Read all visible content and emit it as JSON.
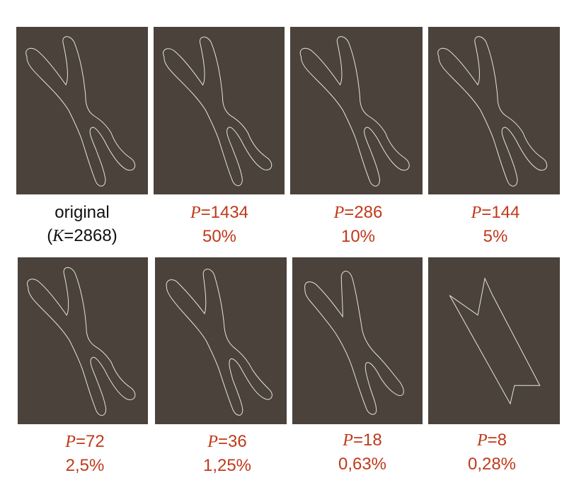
{
  "panels": [
    {
      "id": "original",
      "line1": "original",
      "line2_prefix": "(",
      "var": "K",
      "eq": "=2868",
      "line2_suffix": ")",
      "color": "black"
    },
    {
      "id": "p1434",
      "var": "P",
      "eq": "=1434",
      "line2": "50%",
      "color": "red"
    },
    {
      "id": "p286",
      "var": "P",
      "eq": "=286",
      "line2": "10%",
      "color": "red"
    },
    {
      "id": "p144",
      "var": "P",
      "eq": "=144",
      "line2": "5%",
      "color": "red"
    },
    {
      "id": "p72",
      "var": "P",
      "eq": "=72",
      "line2": "2,5%",
      "color": "red"
    },
    {
      "id": "p36",
      "var": "P",
      "eq": "=36",
      "line2": "1,25%",
      "color": "red"
    },
    {
      "id": "p18",
      "var": "P",
      "eq": "=18",
      "line2": "0,63%",
      "color": "red"
    },
    {
      "id": "p8",
      "var": "P",
      "eq": "=8",
      "line2": "0,28%",
      "color": "red"
    }
  ],
  "colors": {
    "panel_bg": "#4a423b",
    "contour": "#e8e4dc",
    "caption_red": "#c0391b",
    "caption_black": "#111111"
  }
}
